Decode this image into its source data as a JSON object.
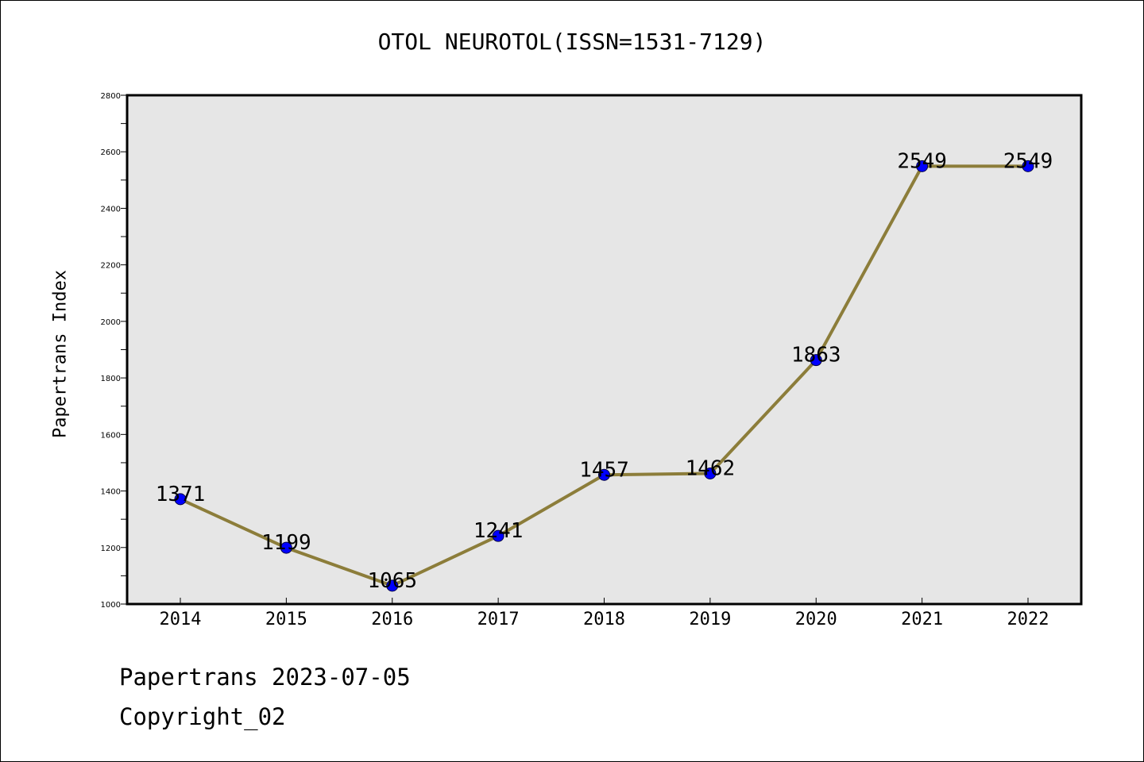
{
  "chart_data": {
    "type": "line",
    "title": "OTOL NEUROTOL(ISSN=1531-7129)",
    "ylabel": "Papertrans Index",
    "xlabel": "",
    "categories": [
      "2014",
      "2015",
      "2016",
      "2017",
      "2018",
      "2019",
      "2020",
      "2021",
      "2022"
    ],
    "values": [
      1371,
      1199,
      1065,
      1241,
      1457,
      1462,
      1863,
      2549,
      2549
    ],
    "data_labels": [
      "1371",
      "1199",
      "1065",
      "1241",
      "1457",
      "1462",
      "1863",
      "2549",
      "2549"
    ],
    "ylim": [
      1000,
      2800
    ],
    "yticks": [
      "1000",
      "1200",
      "1400",
      "1600",
      "1800",
      "2000",
      "2200",
      "2400",
      "2600",
      "2800"
    ],
    "grid": false,
    "legend": "none",
    "colors": {
      "line": "#8c7d3a",
      "marker": "#0000ff",
      "plot_background": "#e6e6e6"
    }
  },
  "footer": {
    "date_line": "Papertrans 2023-07-05",
    "copyright_line": "Copyright_02"
  }
}
